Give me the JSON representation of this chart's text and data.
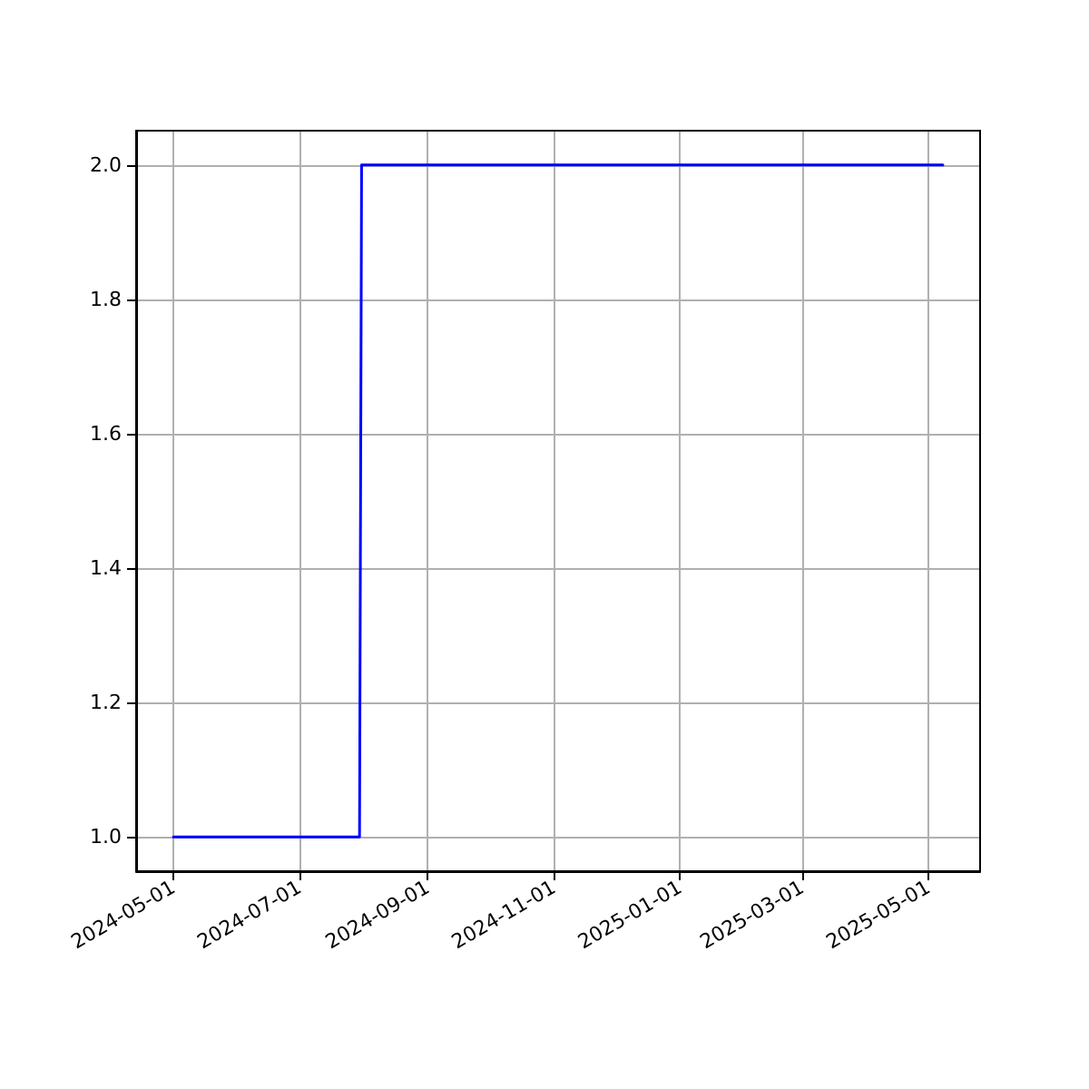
{
  "chart_data": {
    "type": "line",
    "x": [
      "2024-05-01",
      "2024-07-30",
      "2024-07-31",
      "2025-05-08"
    ],
    "series": [
      {
        "color": "#0000ff",
        "values": [
          1,
          1,
          2,
          2
        ]
      }
    ],
    "xlim": [
      "2024-04-13",
      "2025-05-26"
    ],
    "xticks": [
      "2024-05-01",
      "2024-07-01",
      "2024-09-01",
      "2024-11-01",
      "2025-01-01",
      "2025-03-01",
      "2025-05-01"
    ],
    "ylim": [
      0.949,
      2.051
    ],
    "yticks": [
      {
        "value": 1,
        "label": "1.0"
      },
      {
        "value": 1.2,
        "label": "1.2"
      },
      {
        "value": 1.4,
        "label": "1.4"
      },
      {
        "value": 1.6,
        "label": "1.6"
      },
      {
        "value": 1.8,
        "label": "1.8"
      },
      {
        "value": 2,
        "label": "2.0"
      }
    ],
    "grid": true,
    "marker": "none",
    "line_style": "solid"
  }
}
